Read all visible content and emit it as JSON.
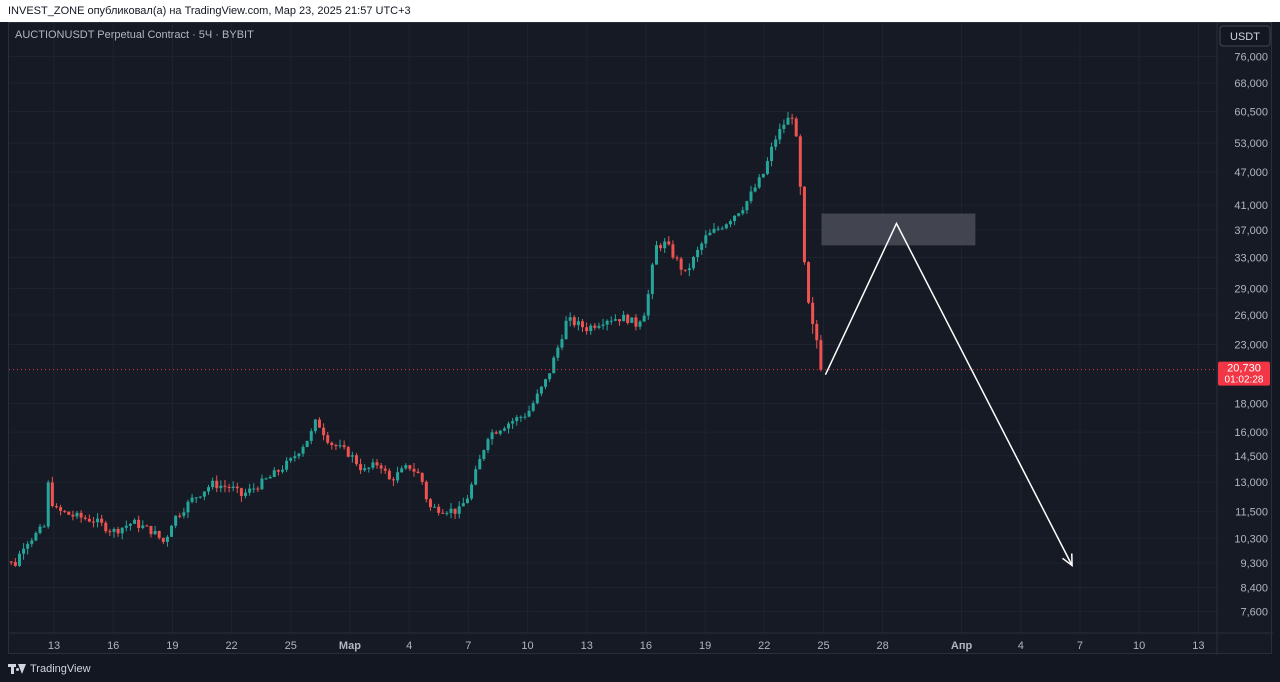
{
  "header": {
    "attribution": "INVEST_ZONE опубликовал(а) на TradingView.com, Мар 23, 2025 21:57 UTC+3"
  },
  "chart_meta": {
    "symbol_title": "AUCTIONUSDT Perpetual Contract · 5Ч · BYBIT",
    "currency_button": "USDT",
    "last_price_label": "20,730",
    "countdown_label": "01:02:28"
  },
  "footer": {
    "brand": "TradingView"
  },
  "colors": {
    "background": "#161a25",
    "up": "#26a69a",
    "down": "#ef5350",
    "grid": "#1f2330",
    "text": "#b2b5be",
    "price_tag": "#f23645",
    "annotation": "#ffffff",
    "zone": "#4a4d58"
  },
  "chart_data": {
    "type": "candlestick",
    "scale": "log",
    "ylim": [
      7100,
      82000
    ],
    "y_ticks": [
      {
        "label": "76,000",
        "v": 76000
      },
      {
        "label": "68,000",
        "v": 68000
      },
      {
        "label": "60,500",
        "v": 60500
      },
      {
        "label": "53,000",
        "v": 53000
      },
      {
        "label": "47,000",
        "v": 47000
      },
      {
        "label": "41,000",
        "v": 41000
      },
      {
        "label": "37,000",
        "v": 37000
      },
      {
        "label": "33,000",
        "v": 33000
      },
      {
        "label": "29,000",
        "v": 29000
      },
      {
        "label": "26,000",
        "v": 26000
      },
      {
        "label": "23,000",
        "v": 23000
      },
      {
        "label": "18,000",
        "v": 18000
      },
      {
        "label": "16,000",
        "v": 16000
      },
      {
        "label": "14,500",
        "v": 14500
      },
      {
        "label": "13,000",
        "v": 13000
      },
      {
        "label": "11,500",
        "v": 11500
      },
      {
        "label": "10,300",
        "v": 10300
      },
      {
        "label": "9,300",
        "v": 9300
      },
      {
        "label": "8,400",
        "v": 8400
      },
      {
        "label": "7,600",
        "v": 7600
      }
    ],
    "x_ticks": [
      {
        "label": "13",
        "day": 13
      },
      {
        "label": "16",
        "day": 16
      },
      {
        "label": "19",
        "day": 19
      },
      {
        "label": "22",
        "day": 22
      },
      {
        "label": "25",
        "day": 25
      },
      {
        "label": "Мар",
        "day": 28,
        "bold": true
      },
      {
        "label": "4",
        "day": 31
      },
      {
        "label": "7",
        "day": 34
      },
      {
        "label": "10",
        "day": 37
      },
      {
        "label": "13",
        "day": 40
      },
      {
        "label": "16",
        "day": 43
      },
      {
        "label": "19",
        "day": 46
      },
      {
        "label": "22",
        "day": 49
      },
      {
        "label": "25",
        "day": 52
      },
      {
        "label": "28",
        "day": 55
      },
      {
        "label": "Апр",
        "day": 59,
        "bold": true
      },
      {
        "label": "4",
        "day": 62
      },
      {
        "label": "7",
        "day": 65
      },
      {
        "label": "10",
        "day": 68
      },
      {
        "label": "13",
        "day": 71
      }
    ],
    "anchors": [
      [
        10.0,
        9700
      ],
      [
        11.0,
        9200
      ],
      [
        11.5,
        10100
      ],
      [
        12.0,
        10400
      ],
      [
        12.5,
        10800
      ],
      [
        12.7,
        12900
      ],
      [
        13.0,
        11600
      ],
      [
        14.0,
        11300
      ],
      [
        15.0,
        11100
      ],
      [
        16.0,
        10600
      ],
      [
        17.0,
        11000
      ],
      [
        18.0,
        10600
      ],
      [
        18.6,
        10100
      ],
      [
        19.0,
        11100
      ],
      [
        20.0,
        12100
      ],
      [
        21.0,
        12900
      ],
      [
        22.0,
        12700
      ],
      [
        22.5,
        12300
      ],
      [
        23.0,
        12600
      ],
      [
        24.0,
        13300
      ],
      [
        25.0,
        14200
      ],
      [
        26.0,
        15800
      ],
      [
        26.3,
        16800
      ],
      [
        27.0,
        15300
      ],
      [
        28.0,
        14600
      ],
      [
        28.7,
        13600
      ],
      [
        29.5,
        14100
      ],
      [
        30.0,
        13100
      ],
      [
        31.0,
        13900
      ],
      [
        31.6,
        13300
      ],
      [
        32.0,
        11700
      ],
      [
        33.0,
        11600
      ],
      [
        33.5,
        11500
      ],
      [
        34.0,
        12300
      ],
      [
        35.0,
        15800
      ],
      [
        36.0,
        16600
      ],
      [
        37.0,
        17300
      ],
      [
        38.0,
        20000
      ],
      [
        38.5,
        22500
      ],
      [
        39.0,
        25500
      ],
      [
        40.0,
        24600
      ],
      [
        41.0,
        25600
      ],
      [
        42.0,
        25700
      ],
      [
        42.5,
        25000
      ],
      [
        43.0,
        26600
      ],
      [
        43.5,
        34500
      ],
      [
        44.0,
        35000
      ],
      [
        45.0,
        30800
      ],
      [
        46.0,
        35800
      ],
      [
        47.0,
        38000
      ],
      [
        48.0,
        41000
      ],
      [
        49.0,
        47000
      ],
      [
        49.5,
        53500
      ],
      [
        50.0,
        57500
      ],
      [
        50.5,
        60000
      ],
      [
        50.8,
        46000
      ],
      [
        51.0,
        33000
      ],
      [
        51.3,
        26000
      ],
      [
        51.8,
        22500
      ],
      [
        52.0,
        20730
      ]
    ],
    "last_price": 20730,
    "annotations": {
      "resistance_zone": {
        "day_start": 51.9,
        "day_end": 59.7,
        "price_low": 34700,
        "price_high": 39600
      },
      "projection_path": [
        {
          "day": 52.1,
          "price": 20300
        },
        {
          "day": 55.7,
          "price": 38000
        },
        {
          "day": 64.6,
          "price": 9200
        }
      ]
    }
  }
}
